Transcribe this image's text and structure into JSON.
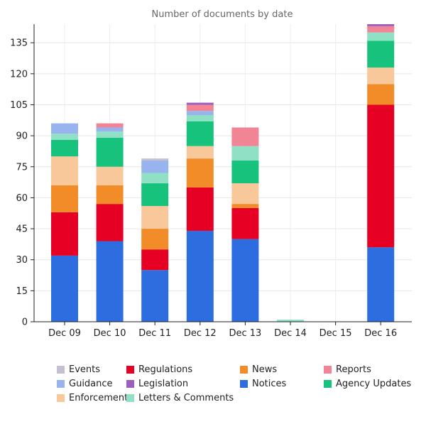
{
  "chart_data": {
    "type": "bar",
    "stacked": true,
    "title": "Number of documents by date",
    "xlabel": "",
    "ylabel": "",
    "categories": [
      "Dec 09",
      "Dec 10",
      "Dec 11",
      "Dec 12",
      "Dec 13",
      "Dec 14",
      "Dec 15",
      "Dec 16"
    ],
    "ylim": [
      0,
      144
    ],
    "yticks": [
      0,
      15,
      30,
      45,
      60,
      75,
      90,
      105,
      120,
      135
    ],
    "grid": true,
    "legend_position": "bottom",
    "series": [
      {
        "name": "Notices",
        "color": "#2d6de0",
        "values": [
          32,
          39,
          25,
          44,
          40,
          0,
          0,
          36
        ]
      },
      {
        "name": "Regulations",
        "color": "#e60023",
        "values": [
          21,
          18,
          10,
          21,
          15,
          0,
          0,
          69
        ]
      },
      {
        "name": "News",
        "color": "#f28c28",
        "values": [
          13,
          9,
          10,
          14,
          2,
          0,
          0,
          10
        ]
      },
      {
        "name": "Enforcements",
        "color": "#f8c89a",
        "values": [
          14,
          9,
          11,
          6,
          10,
          0,
          0,
          8
        ]
      },
      {
        "name": "Agency Updates",
        "color": "#17c27d",
        "values": [
          8,
          14,
          11,
          12,
          11,
          0,
          0,
          13
        ]
      },
      {
        "name": "Letters & Comments",
        "color": "#8fe0c4",
        "values": [
          3,
          3,
          5,
          3,
          7,
          1,
          0,
          4
        ]
      },
      {
        "name": "Guidance",
        "color": "#97b4ee",
        "values": [
          5,
          2,
          6,
          2,
          0,
          0,
          0,
          0
        ]
      },
      {
        "name": "Reports",
        "color": "#f28595",
        "values": [
          0,
          2,
          0,
          3,
          9,
          0,
          0,
          3
        ]
      },
      {
        "name": "Legislation",
        "color": "#9b5fc0",
        "values": [
          0,
          0,
          0,
          1,
          0,
          0,
          0,
          1
        ]
      },
      {
        "name": "Events",
        "color": "#c4c0d0",
        "values": [
          0,
          0,
          1,
          0,
          0,
          0,
          0,
          0
        ]
      }
    ],
    "legend_order": [
      "Events",
      "Guidance",
      "Enforcements",
      "Regulations",
      "Legislation",
      "Letters & Comments",
      "News",
      "Notices",
      "Reports",
      "Agency Updates"
    ]
  }
}
